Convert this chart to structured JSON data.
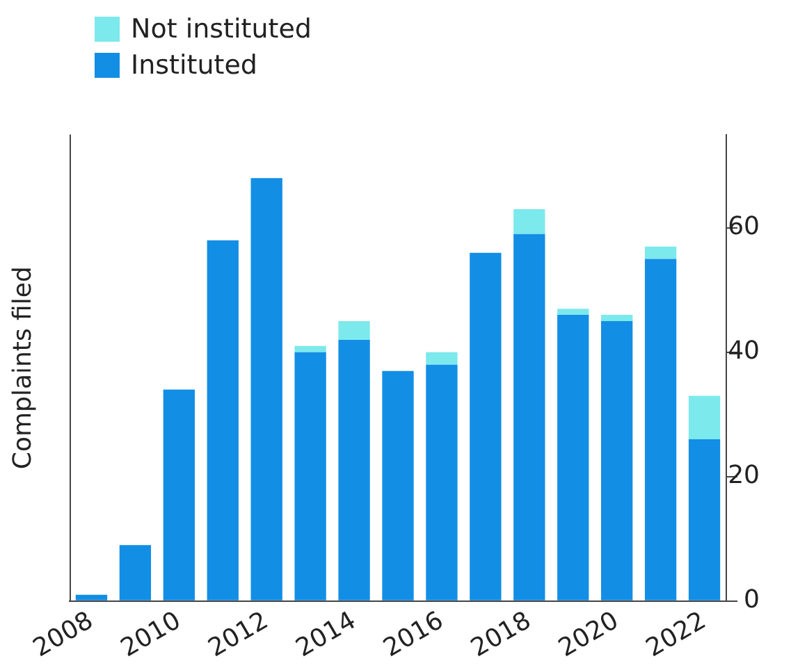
{
  "chart_data": {
    "type": "bar",
    "ylabel": "Complaints filed",
    "stacked": true,
    "legend": "top left",
    "categories": [
      "2008",
      null,
      "2010",
      null,
      "2012",
      null,
      "2014",
      null,
      "2016",
      null,
      "2018",
      null,
      "2020",
      null,
      "2022"
    ],
    "series": [
      {
        "name": "Instituted",
        "color": "#138ee5",
        "values": [
          1,
          9,
          34,
          58,
          68,
          40,
          42,
          37,
          38,
          56,
          59,
          46,
          45,
          55,
          26
        ]
      },
      {
        "name": "Not instituted",
        "color": "#7ce9ec",
        "values": [
          0,
          0,
          0,
          0,
          0,
          1,
          3,
          0,
          2,
          0,
          4,
          1,
          1,
          2,
          7
        ]
      }
    ],
    "ylim": [
      0,
      75
    ],
    "yticks": [
      0,
      20,
      40,
      60
    ],
    "grid": false
  }
}
